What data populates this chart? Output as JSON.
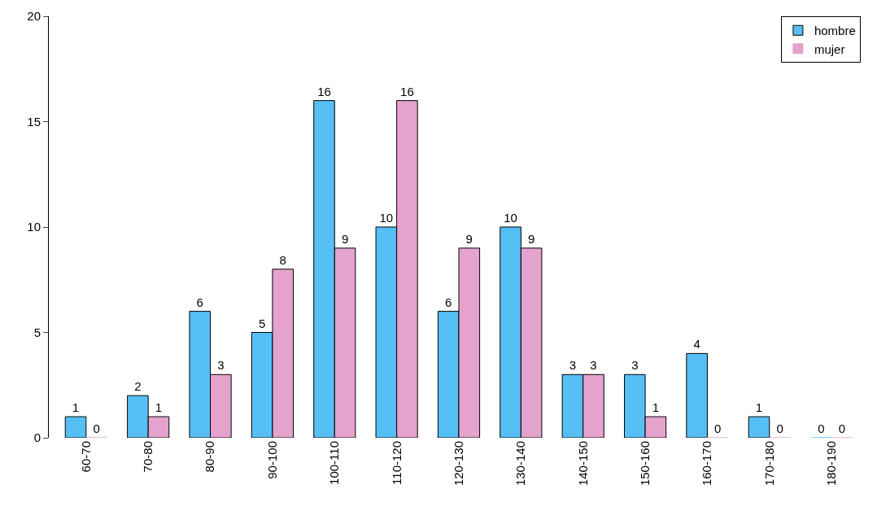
{
  "chart_data": {
    "type": "bar",
    "categories": [
      "60-70",
      "70-80",
      "80-90",
      "90-100",
      "100-110",
      "110-120",
      "120-130",
      "130-140",
      "140-150",
      "150-160",
      "160-170",
      "170-180",
      "180-190"
    ],
    "series": [
      {
        "name": "hombre",
        "color": "#56bff5",
        "values": [
          1,
          2,
          6,
          5,
          16,
          10,
          6,
          10,
          3,
          3,
          4,
          1,
          0
        ]
      },
      {
        "name": "mujer",
        "color": "#e3a3cd",
        "values": [
          0,
          1,
          3,
          8,
          9,
          16,
          9,
          9,
          3,
          1,
          0,
          0,
          0
        ]
      }
    ],
    "ylim": [
      0,
      20
    ],
    "yticks": [
      0,
      5,
      10,
      15,
      20
    ],
    "data_labels": true,
    "legend": "top right"
  }
}
